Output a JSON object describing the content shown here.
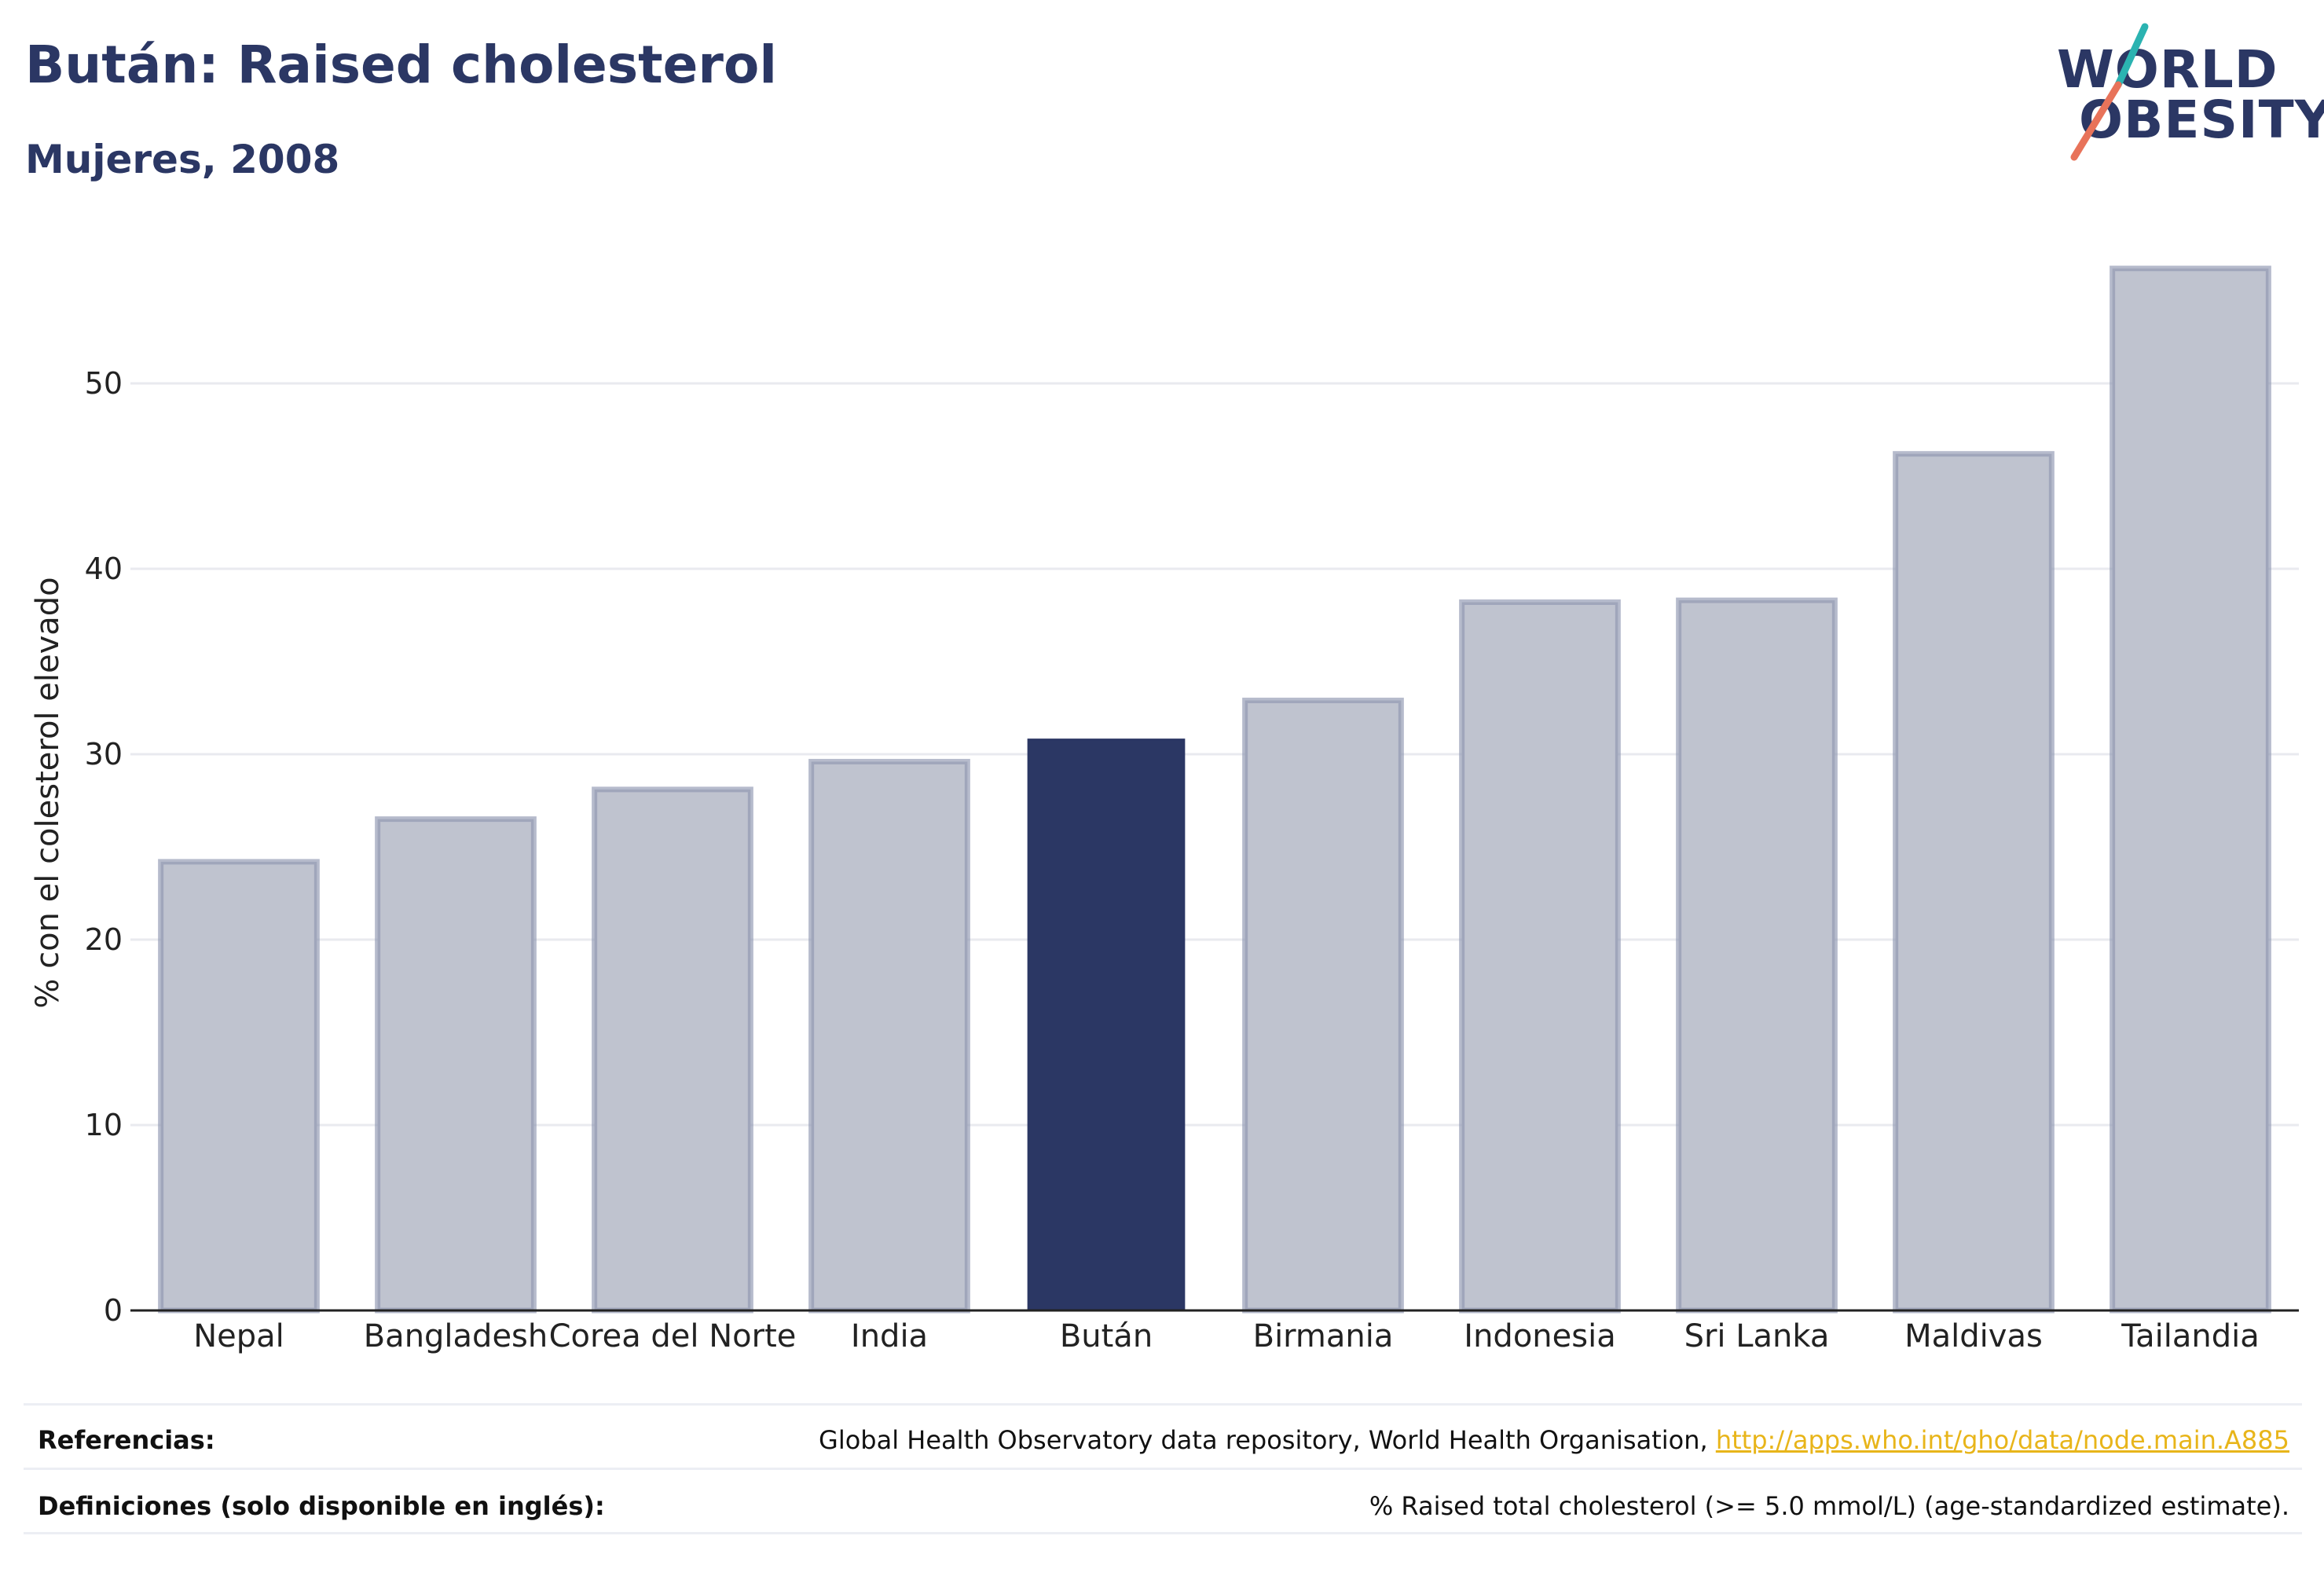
{
  "header": {
    "title": "Bután: Raised cholesterol",
    "subtitle": "Mujeres, 2008"
  },
  "logo": {
    "line1": "WORLD",
    "line2": "OBESITY",
    "accent_teal": "#2bb3b1",
    "accent_coral": "#e8735a"
  },
  "colors": {
    "highlight_bar": "#2b3764",
    "other_bar_fill": "#bfc3cf",
    "other_bar_stroke": "#8f97b0",
    "gridline": "#e9eaef",
    "axis": "#222222"
  },
  "chart_data": {
    "type": "bar",
    "ylabel": "% con el colesterol elevado",
    "xlabel": "",
    "ylim": [
      0,
      57
    ],
    "yticks": [
      0,
      10,
      20,
      30,
      40,
      50
    ],
    "grid": true,
    "categories": [
      "Nepal",
      "Bangladesh",
      "Corea del Norte",
      "India",
      "Bután",
      "Birmania",
      "Indonesia",
      "Sri Lanka",
      "Maldivas",
      "Tailandia"
    ],
    "values": [
      24.2,
      26.5,
      28.1,
      29.6,
      30.8,
      32.9,
      38.2,
      38.3,
      46.2,
      56.2
    ],
    "highlight": "Bután"
  },
  "footer": {
    "references_label": "Referencias:",
    "references_text": "Global Health Observatory data repository, World Health Organisation, ",
    "references_link": "http://apps.who.int/gho/data/node.main.A885",
    "definitions_label": "Definiciones (solo disponible en inglés):",
    "definitions_text": "% Raised total cholesterol (>= 5.0 mmol/L) (age-standardized estimate)."
  }
}
